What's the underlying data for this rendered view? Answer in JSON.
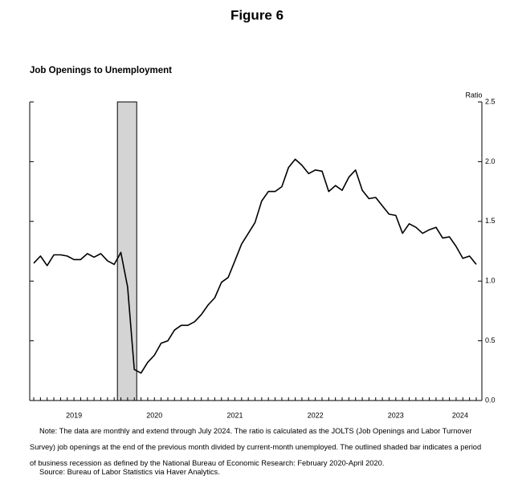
{
  "figure_title": "Figure 6",
  "chart_data": {
    "type": "line",
    "title": "Job Openings to Unemployment",
    "y_label": "Ratio",
    "x": [
      2019.0,
      2019.0833,
      2019.1667,
      2019.25,
      2019.3333,
      2019.4167,
      2019.5,
      2019.5833,
      2019.6667,
      2019.75,
      2019.8333,
      2019.9167,
      2020.0,
      2020.0833,
      2020.1667,
      2020.25,
      2020.3333,
      2020.4167,
      2020.5,
      2020.5833,
      2020.6667,
      2020.75,
      2020.8333,
      2020.9167,
      2021.0,
      2021.0833,
      2021.1667,
      2021.25,
      2021.3333,
      2021.4167,
      2021.5,
      2021.5833,
      2021.6667,
      2021.75,
      2021.8333,
      2021.9167,
      2022.0,
      2022.0833,
      2022.1667,
      2022.25,
      2022.3333,
      2022.4167,
      2022.5,
      2022.5833,
      2022.6667,
      2022.75,
      2022.8333,
      2022.9167,
      2023.0,
      2023.0833,
      2023.1667,
      2023.25,
      2023.3333,
      2023.4167,
      2023.5,
      2023.5833,
      2023.6667,
      2023.75,
      2023.8333,
      2023.9167,
      2024.0,
      2024.0833,
      2024.1667,
      2024.25,
      2024.3333,
      2024.4167,
      2024.5
    ],
    "series": [
      {
        "name": "Job openings to unemployment",
        "color": "#000000",
        "values": [
          1.15,
          1.21,
          1.13,
          1.22,
          1.22,
          1.21,
          1.18,
          1.18,
          1.23,
          1.2,
          1.23,
          1.17,
          1.14,
          1.24,
          0.95,
          0.26,
          0.23,
          0.32,
          0.38,
          0.48,
          0.5,
          0.59,
          0.63,
          0.63,
          0.66,
          0.72,
          0.8,
          0.86,
          0.99,
          1.03,
          1.17,
          1.31,
          1.4,
          1.49,
          1.67,
          1.75,
          1.75,
          1.79,
          1.95,
          2.02,
          1.97,
          1.9,
          1.93,
          1.92,
          1.75,
          1.8,
          1.76,
          1.87,
          1.93,
          1.76,
          1.69,
          1.7,
          1.63,
          1.56,
          1.55,
          1.4,
          1.48,
          1.45,
          1.4,
          1.43,
          1.45,
          1.36,
          1.37,
          1.29,
          1.19,
          1.21,
          1.14
        ]
      }
    ],
    "shaded_regions": [
      [
        2020.04,
        2020.28
      ]
    ],
    "shade_color": "#d4d4d4",
    "xlim": [
      2018.95,
      2024.57
    ],
    "xticks": [
      {
        "value": 2019.5,
        "label": "2019"
      },
      {
        "value": 2020.5,
        "label": "2020"
      },
      {
        "value": 2021.5,
        "label": "2021"
      },
      {
        "value": 2022.5,
        "label": "2022"
      },
      {
        "value": 2023.5,
        "label": "2023"
      },
      {
        "value": 2024.3,
        "label": "2024"
      }
    ],
    "ylim": [
      0,
      2.5
    ],
    "yticks": [
      {
        "value": 0,
        "label": "0.0"
      },
      0.5,
      {
        "value": 1,
        "label": "1.0"
      },
      1.5,
      {
        "value": 2,
        "label": "2.0"
      },
      2.5
    ],
    "grid": false
  },
  "notes": "Note: The data are monthly and extend through July 2024. The ratio is calculated as the JOLTS (Job Openings and Labor Turnover Survey) job openings at the end of the previous month divided by current-month unemployed. The outlined shaded bar indicates a period of business recession as defined by the National Bureau of Economic Research: February 2020-April 2020.",
  "source": "Source: Bureau of Labor Statistics via Haver Analytics."
}
